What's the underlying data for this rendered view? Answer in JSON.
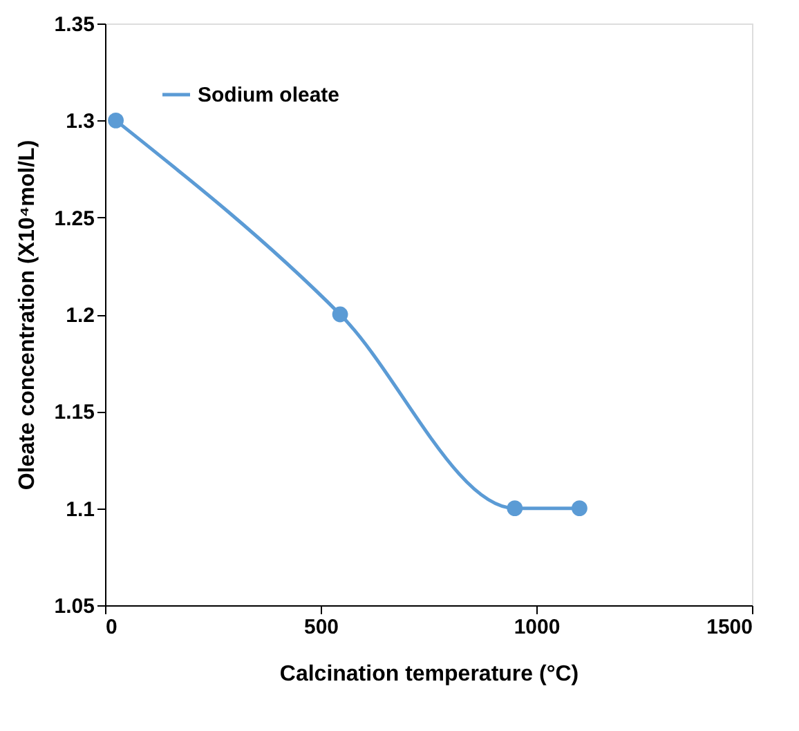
{
  "chart_data": {
    "type": "line",
    "xlabel": "Calcination temperature (°C)",
    "ylabel": "Oleate concentration (X10⁴mol/L)",
    "x": [
      25,
      545,
      950,
      1100
    ],
    "series": [
      {
        "name": "Sodium oleate",
        "color": "#5b9bd5",
        "values": [
          1.3,
          1.2,
          1.1,
          1.1
        ]
      }
    ],
    "xlim": [
      0,
      1500
    ],
    "xticks": [
      0,
      500,
      1000,
      1500
    ],
    "ylim": [
      1.05,
      1.35
    ],
    "yticks": [
      1.05,
      1.1,
      1.15,
      1.2,
      1.25,
      1.3,
      1.35
    ],
    "grid": false,
    "legend": "top left",
    "marker": "circle",
    "line_style": "solid"
  }
}
